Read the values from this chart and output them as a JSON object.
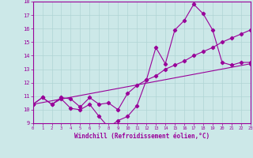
{
  "xlabel": "Windchill (Refroidissement éolien,°C)",
  "ylim": [
    9,
    18
  ],
  "xlim": [
    0,
    23
  ],
  "bg_color": "#cce8e8",
  "line_color": "#990099",
  "grid_color": "#b0d4d4",
  "line1_x": [
    0,
    1,
    2,
    3,
    4,
    5,
    6,
    7,
    8,
    9,
    10,
    11,
    12,
    13,
    14,
    15,
    16,
    17,
    18,
    19,
    20,
    21,
    22,
    23
  ],
  "line1_y": [
    10.4,
    10.9,
    10.4,
    10.8,
    10.1,
    10.0,
    10.4,
    9.5,
    8.7,
    9.2,
    9.5,
    10.3,
    12.2,
    14.6,
    13.4,
    15.9,
    16.6,
    17.8,
    17.1,
    15.9,
    13.5,
    13.3,
    13.5,
    13.5
  ],
  "line2_x": [
    0,
    1,
    2,
    3,
    4,
    5,
    6,
    7,
    8,
    9,
    10,
    11,
    12,
    13,
    14,
    15,
    16,
    17,
    18,
    19,
    20,
    21,
    22,
    23
  ],
  "line2_y": [
    10.4,
    10.9,
    10.4,
    10.9,
    10.8,
    10.2,
    10.9,
    10.4,
    10.5,
    10.0,
    11.2,
    11.8,
    12.2,
    12.5,
    13.0,
    13.3,
    13.6,
    14.0,
    14.3,
    14.6,
    15.0,
    15.3,
    15.6,
    15.9
  ],
  "line3_x": [
    0,
    23
  ],
  "line3_y": [
    10.4,
    13.4
  ],
  "xticks": [
    0,
    1,
    2,
    3,
    4,
    5,
    6,
    7,
    8,
    9,
    10,
    11,
    12,
    13,
    14,
    15,
    16,
    17,
    18,
    19,
    20,
    21,
    22,
    23
  ],
  "yticks": [
    9,
    10,
    11,
    12,
    13,
    14,
    15,
    16,
    17,
    18
  ]
}
